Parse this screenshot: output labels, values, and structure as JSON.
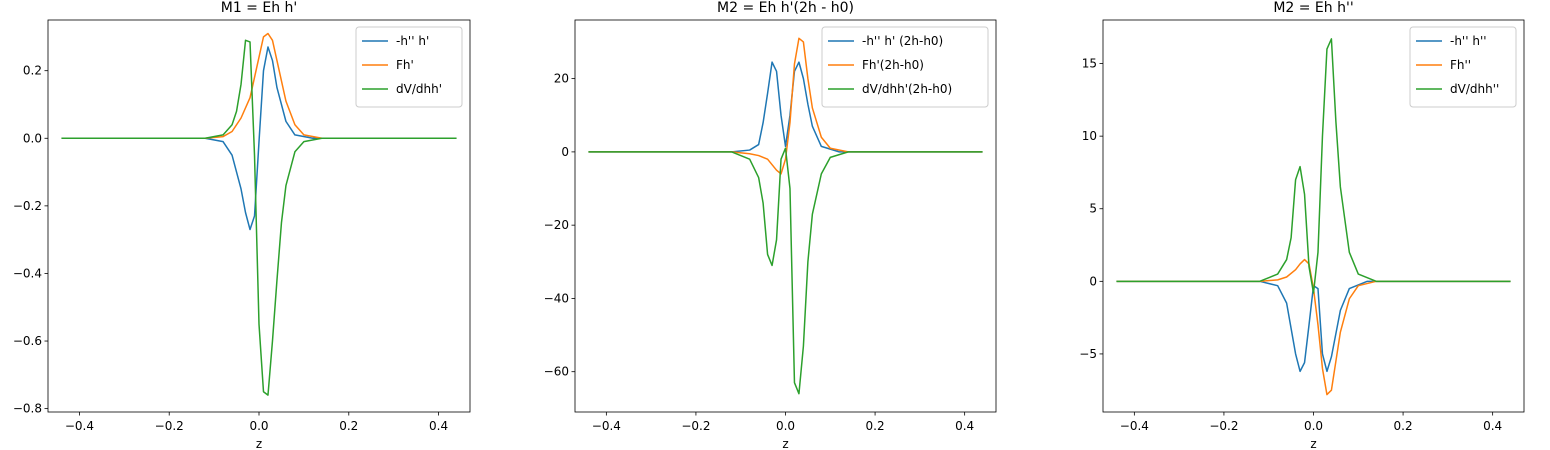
{
  "colors": {
    "c0": "#1f77b4",
    "c1": "#ff7f0e",
    "c2": "#2ca02c"
  },
  "chart_data": [
    {
      "type": "line",
      "title": "M1 = Eh h'",
      "xlabel": "z",
      "ylabel": "",
      "xlim": [
        -0.47,
        0.47
      ],
      "ylim": [
        -0.81,
        0.35
      ],
      "xticks": [
        -0.4,
        -0.2,
        0.0,
        0.2,
        0.4
      ],
      "xtick_labels": [
        "−0.4",
        "−0.2",
        "0.0",
        "0.2",
        "0.4"
      ],
      "yticks": [
        -0.8,
        -0.6,
        -0.4,
        -0.2,
        0.0,
        0.2
      ],
      "ytick_labels": [
        "−0.8",
        "−0.6",
        "−0.4",
        "−0.2",
        "0.0",
        "0.2"
      ],
      "legend": "top-right",
      "series": [
        {
          "name": "-h'' h'",
          "color": "#1f77b4",
          "x": [
            -0.44,
            -0.12,
            -0.08,
            -0.06,
            -0.04,
            -0.03,
            -0.02,
            -0.01,
            0.0,
            0.01,
            0.02,
            0.03,
            0.04,
            0.06,
            0.08,
            0.12,
            0.44
          ],
          "y": [
            0,
            0,
            -0.01,
            -0.05,
            -0.15,
            -0.22,
            -0.27,
            -0.23,
            -0.01,
            0.2,
            0.27,
            0.23,
            0.15,
            0.05,
            0.01,
            0,
            0
          ]
        },
        {
          "name": "Fh'",
          "color": "#ff7f0e",
          "x": [
            -0.44,
            -0.12,
            -0.08,
            -0.06,
            -0.04,
            -0.02,
            0.0,
            0.01,
            0.02,
            0.03,
            0.04,
            0.06,
            0.08,
            0.1,
            0.14,
            0.44
          ],
          "y": [
            0,
            0,
            0.005,
            0.02,
            0.06,
            0.12,
            0.24,
            0.3,
            0.31,
            0.29,
            0.23,
            0.11,
            0.04,
            0.01,
            0,
            0
          ]
        },
        {
          "name": "dV/dhh'",
          "color": "#2ca02c",
          "x": [
            -0.44,
            -0.12,
            -0.08,
            -0.06,
            -0.05,
            -0.04,
            -0.03,
            -0.02,
            -0.01,
            0.0,
            0.01,
            0.02,
            0.03,
            0.04,
            0.05,
            0.06,
            0.08,
            0.1,
            0.14,
            0.44
          ],
          "y": [
            0,
            0,
            0.01,
            0.04,
            0.08,
            0.16,
            0.29,
            0.285,
            -0.05,
            -0.55,
            -0.75,
            -0.76,
            -0.6,
            -0.42,
            -0.25,
            -0.14,
            -0.04,
            -0.01,
            0,
            0
          ]
        }
      ]
    },
    {
      "type": "line",
      "title": "M2 = Eh h'(2h - h0)",
      "xlabel": "z",
      "ylabel": "",
      "xlim": [
        -0.47,
        0.47
      ],
      "ylim": [
        -71,
        36
      ],
      "xticks": [
        -0.4,
        -0.2,
        0.0,
        0.2,
        0.4
      ],
      "xtick_labels": [
        "−0.4",
        "−0.2",
        "0.0",
        "0.2",
        "0.4"
      ],
      "yticks": [
        -60,
        -40,
        -20,
        0,
        20
      ],
      "ytick_labels": [
        "−60",
        "−40",
        "−20",
        "0",
        "20"
      ],
      "legend": "top-right",
      "series": [
        {
          "name": "-h'' h' (2h-h0)",
          "color": "#1f77b4",
          "x": [
            -0.44,
            -0.12,
            -0.08,
            -0.06,
            -0.05,
            -0.04,
            -0.03,
            -0.02,
            -0.01,
            0.0,
            0.01,
            0.02,
            0.03,
            0.04,
            0.05,
            0.06,
            0.08,
            0.12,
            0.44
          ],
          "y": [
            0,
            0,
            0.5,
            2,
            8,
            16,
            24.5,
            22,
            10,
            1.5,
            10,
            22,
            24.5,
            20,
            13,
            7,
            1.5,
            0,
            0
          ]
        },
        {
          "name": "Fh'(2h-h0)",
          "color": "#ff7f0e",
          "x": [
            -0.44,
            -0.12,
            -0.08,
            -0.06,
            -0.04,
            -0.02,
            -0.01,
            0.0,
            0.01,
            0.02,
            0.03,
            0.04,
            0.05,
            0.06,
            0.08,
            0.1,
            0.14,
            0.44
          ],
          "y": [
            0,
            0,
            -0.5,
            -1,
            -2,
            -5,
            -6,
            -2,
            8,
            24,
            31,
            30,
            20,
            12,
            4,
            1,
            0,
            0
          ]
        },
        {
          "name": "dV/dhh'(2h-h0)",
          "color": "#2ca02c",
          "x": [
            -0.44,
            -0.12,
            -0.08,
            -0.06,
            -0.05,
            -0.04,
            -0.03,
            -0.02,
            -0.01,
            0.0,
            0.01,
            0.02,
            0.03,
            0.04,
            0.05,
            0.06,
            0.08,
            0.1,
            0.14,
            0.44
          ],
          "y": [
            0,
            0,
            -2,
            -7,
            -14,
            -28,
            -31,
            -24,
            -2,
            1,
            -10,
            -63,
            -66,
            -53,
            -30,
            -17,
            -6,
            -1.5,
            0,
            0
          ]
        }
      ]
    },
    {
      "type": "line",
      "title": "M2 = Eh h''",
      "xlabel": "z",
      "ylabel": "",
      "xlim": [
        -0.47,
        0.47
      ],
      "ylim": [
        -9,
        18
      ],
      "xticks": [
        -0.4,
        -0.2,
        0.0,
        0.2,
        0.4
      ],
      "xtick_labels": [
        "−0.4",
        "−0.2",
        "0.0",
        "0.2",
        "0.4"
      ],
      "yticks": [
        -5,
        0,
        5,
        10,
        15
      ],
      "ytick_labels": [
        "−5",
        "0",
        "5",
        "10",
        "15"
      ],
      "legend": "top-right",
      "series": [
        {
          "name": "-h'' h''",
          "color": "#1f77b4",
          "x": [
            -0.44,
            -0.12,
            -0.08,
            -0.06,
            -0.04,
            -0.03,
            -0.02,
            -0.01,
            0.0,
            0.01,
            0.02,
            0.03,
            0.04,
            0.06,
            0.08,
            0.12,
            0.44
          ],
          "y": [
            0,
            0,
            -0.3,
            -1.5,
            -5,
            -6.2,
            -5.6,
            -3,
            -0.3,
            -0.5,
            -5,
            -6.2,
            -5.2,
            -2,
            -0.5,
            0,
            0
          ]
        },
        {
          "name": "Fh''",
          "color": "#ff7f0e",
          "x": [
            -0.44,
            -0.12,
            -0.08,
            -0.06,
            -0.04,
            -0.03,
            -0.02,
            -0.01,
            0.0,
            0.01,
            0.02,
            0.03,
            0.04,
            0.05,
            0.06,
            0.08,
            0.1,
            0.14,
            0.44
          ],
          "y": [
            0,
            0,
            0.1,
            0.3,
            0.8,
            1.2,
            1.5,
            1.2,
            -0.5,
            -3,
            -6,
            -7.8,
            -7.5,
            -5.5,
            -3.5,
            -1.2,
            -0.3,
            0,
            0
          ]
        },
        {
          "name": "dV/dhh''",
          "color": "#2ca02c",
          "x": [
            -0.44,
            -0.12,
            -0.08,
            -0.06,
            -0.05,
            -0.04,
            -0.03,
            -0.02,
            -0.01,
            0.0,
            0.01,
            0.02,
            0.03,
            0.04,
            0.05,
            0.06,
            0.08,
            0.1,
            0.14,
            0.44
          ],
          "y": [
            0,
            0,
            0.5,
            1.5,
            3,
            7,
            7.9,
            6,
            1,
            -0.8,
            2,
            10,
            16,
            16.7,
            11,
            6.5,
            2,
            0.5,
            0,
            0
          ]
        }
      ]
    }
  ]
}
